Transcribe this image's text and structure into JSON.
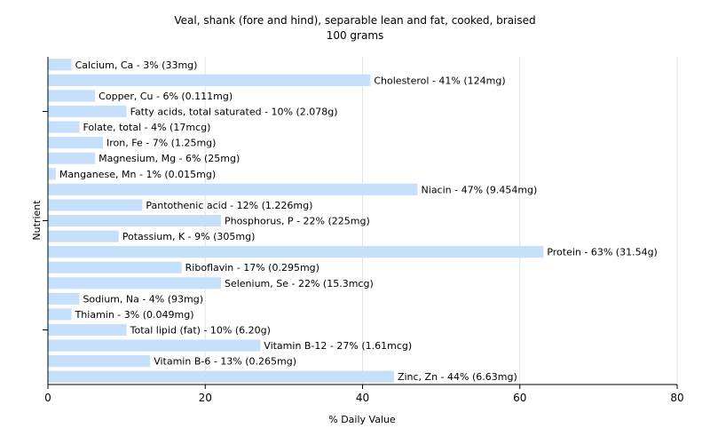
{
  "chart_data": {
    "type": "bar",
    "orientation": "horizontal",
    "title": "Veal, shank (fore and hind), separable lean and fat, cooked, braised",
    "subtitle": "100 grams",
    "xlabel": "% Daily Value",
    "ylabel": "Nutrient",
    "xlim": [
      0,
      80
    ],
    "xticks": [
      0,
      20,
      40,
      60,
      80
    ],
    "grid": true,
    "bar_color": "#c6e0fb",
    "categories": [
      "Calcium, Ca",
      "Cholesterol",
      "Copper, Cu",
      "Fatty acids, total saturated",
      "Folate, total",
      "Iron, Fe",
      "Magnesium, Mg",
      "Manganese, Mn",
      "Niacin",
      "Pantothenic acid",
      "Phosphorus, P",
      "Potassium, K",
      "Protein",
      "Riboflavin",
      "Selenium, Se",
      "Sodium, Na",
      "Thiamin",
      "Total lipid (fat)",
      "Vitamin B-12",
      "Vitamin B-6",
      "Zinc, Zn"
    ],
    "values": [
      3,
      41,
      6,
      10,
      4,
      7,
      6,
      1,
      47,
      12,
      22,
      9,
      63,
      17,
      22,
      4,
      3,
      10,
      27,
      13,
      44
    ],
    "bar_labels": [
      "Calcium, Ca - 3% (33mg)",
      "Cholesterol - 41% (124mg)",
      "Copper, Cu - 6% (0.111mg)",
      "Fatty acids, total saturated - 10% (2.078g)",
      "Folate, total - 4% (17mcg)",
      "Iron, Fe - 7% (1.25mg)",
      "Magnesium, Mg - 6% (25mg)",
      "Manganese, Mn - 1% (0.015mg)",
      "Niacin - 47% (9.454mg)",
      "Pantothenic acid - 12% (1.226mg)",
      "Phosphorus, P - 22% (225mg)",
      "Potassium, K - 9% (305mg)",
      "Protein - 63% (31.54g)",
      "Riboflavin - 17% (0.295mg)",
      "Selenium, Se - 22% (15.3mcg)",
      "Sodium, Na - 4% (93mg)",
      "Thiamin - 3% (0.049mg)",
      "Total lipid (fat) - 10% (6.20g)",
      "Vitamin B-12 - 27% (1.61mcg)",
      "Vitamin B-6 - 13% (0.265mg)",
      "Zinc, Zn - 44% (6.63mg)"
    ]
  }
}
